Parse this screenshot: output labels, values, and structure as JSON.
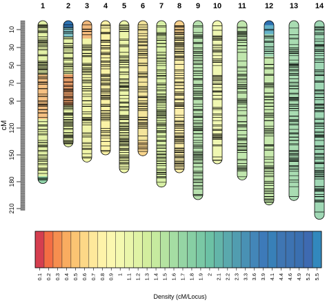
{
  "figure": {
    "type": "linkage_map_ideogram",
    "colors": {
      "bar_outline": "#000000",
      "marker_line": "#000000",
      "ruler_fill": "#7f7f7f"
    }
  },
  "chart_data": [
    {
      "type": "linkage_map",
      "title": "",
      "ylabel": "cM",
      "y_ticks": [
        10,
        30,
        50,
        70,
        90,
        120,
        150,
        180,
        210
      ],
      "ylim": [
        0,
        215
      ],
      "chromosomes": [
        {
          "name": "1",
          "length_cM": 182,
          "marker_density": 0.55,
          "fill": "#e3f1a6",
          "color_bands": [
            {
              "from": 60,
              "to": 110,
              "color": "#f5c082"
            },
            {
              "from": 174,
              "to": 182,
              "color": "#8fd3a8"
            }
          ]
        },
        {
          "name": "2",
          "length_cM": 141,
          "marker_density": 0.6,
          "fill": "#e6f4a8",
          "color_bands": [
            {
              "from": 0,
              "to": 8,
              "color": "#2f74b4"
            },
            {
              "from": 8,
              "to": 18,
              "color": "#7fc3c6"
            },
            {
              "from": 60,
              "to": 95,
              "color": "#e39a66"
            }
          ]
        },
        {
          "name": "3",
          "length_cM": 158,
          "marker_density": 0.5,
          "fill": "#f1f5a9",
          "color_bands": [
            {
              "from": 0,
              "to": 20,
              "color": "#f2b97c"
            }
          ]
        },
        {
          "name": "4",
          "length_cM": 150,
          "marker_density": 0.5,
          "fill": "#fbf3a6",
          "color_bands": []
        },
        {
          "name": "5",
          "length_cM": 170,
          "marker_density": 0.55,
          "fill": "#edf6aa",
          "color_bands": []
        },
        {
          "name": "6",
          "length_cM": 151,
          "marker_density": 0.55,
          "fill": "#f3e49b",
          "color_bands": [
            {
              "from": 135,
              "to": 151,
              "color": "#f8d58d"
            }
          ]
        },
        {
          "name": "7",
          "length_cM": 186,
          "marker_density": 0.55,
          "fill": "#d7efa5",
          "color_bands": []
        },
        {
          "name": "8",
          "length_cM": 170,
          "marker_density": 0.55,
          "fill": "#fbeeaa",
          "color_bands": [
            {
              "from": 0,
              "to": 15,
              "color": "#f7cf8b"
            }
          ]
        },
        {
          "name": "9",
          "length_cM": 200,
          "marker_density": 0.5,
          "fill": "#b7e1ae",
          "color_bands": []
        },
        {
          "name": "10",
          "length_cM": 160,
          "marker_density": 0.45,
          "fill": "#f0f7b2",
          "color_bands": []
        },
        {
          "name": "11",
          "length_cM": 178,
          "marker_density": 0.5,
          "fill": "#c0e6ad",
          "color_bands": []
        },
        {
          "name": "12",
          "length_cM": 206,
          "marker_density": 0.5,
          "fill": "#c7e9ad",
          "color_bands": [
            {
              "from": 0,
              "to": 5,
              "color": "#2c6fb0"
            },
            {
              "from": 5,
              "to": 15,
              "color": "#64b2c8"
            },
            {
              "from": 15,
              "to": 40,
              "color": "#9fd6b4"
            }
          ]
        },
        {
          "name": "13",
          "length_cM": 201,
          "marker_density": 0.45,
          "fill": "#a9dcb2",
          "color_bands": []
        },
        {
          "name": "14",
          "length_cM": 222,
          "marker_density": 0.5,
          "fill": "#9fd7b4",
          "color_bands": []
        }
      ]
    },
    {
      "type": "heatmap",
      "title": "",
      "xlabel": "Density (cM/Locus)",
      "categories": [
        "0.1",
        "0.2",
        "0.3",
        "0.4",
        "0.5",
        "0.6",
        "0.7",
        "0.8",
        "0.9",
        "1",
        "1.1",
        "1.2",
        "1.3",
        "1.4",
        "1.5",
        "1.6",
        "1.7",
        "1.8",
        "1.9",
        "2",
        "2.1",
        "2.2",
        "2.3",
        "3.3",
        "3.6",
        "3.9",
        "4.1",
        "4.4",
        "4.6",
        "4.9",
        "5.2",
        "5.5"
      ],
      "colors": [
        "#d53e4f",
        "#f46d43",
        "#f68e4f",
        "#f9ac60",
        "#fbc473",
        "#fdd887",
        "#fee89b",
        "#fef3a9",
        "#fbf8b0",
        "#f4f9b0",
        "#eaf6ab",
        "#e0f3a5",
        "#d3ee9e",
        "#c6ea9f",
        "#b5e3a1",
        "#a5dda3",
        "#95d5a4",
        "#87cfa4",
        "#7ac8a5",
        "#6cc1a5",
        "#63b5a9",
        "#5aa9ad",
        "#519db0",
        "#4991b4",
        "#4386b8",
        "#3d7ab9",
        "#3880b8",
        "#3f76b3",
        "#3d73b2",
        "#3a6fb0",
        "#3e6ab1",
        "#3288bd"
      ]
    }
  ]
}
